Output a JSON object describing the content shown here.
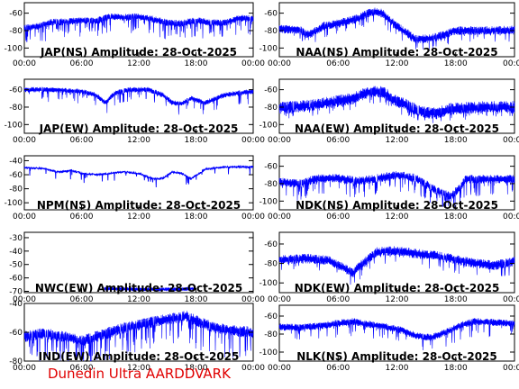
{
  "footer_text": "Dunedin Ultra AARDDVARK",
  "series_color": "#0000ff",
  "footer_color": "#e00000",
  "chart_data": [
    {
      "type": "line",
      "title": "JAP(NS) Amplitude: 28-Oct-2025",
      "x_ticks": [
        "00:00",
        "06:00",
        "12:00",
        "18:00",
        "00:00"
      ],
      "y_ticks": [
        "-60",
        "-80",
        "-100"
      ],
      "ylim": [
        -110,
        -48
      ],
      "baseline": [
        [
          0,
          -77
        ],
        [
          1.5,
          -75
        ],
        [
          3,
          -70
        ],
        [
          4.5,
          -70
        ],
        [
          6,
          -68
        ],
        [
          7.5,
          -69
        ],
        [
          9,
          -64
        ],
        [
          10.5,
          -65
        ],
        [
          12,
          -64
        ],
        [
          13.5,
          -67
        ],
        [
          15,
          -71
        ],
        [
          16.5,
          -72
        ],
        [
          18,
          -68
        ],
        [
          19.5,
          -71
        ],
        [
          21,
          -71
        ],
        [
          22.5,
          -66
        ],
        [
          24,
          -66
        ]
      ],
      "noise": 4,
      "spike_rate": 0.12,
      "spike_depth": 14,
      "mode": "dense"
    },
    {
      "type": "line",
      "title": "NAA(NS) Amplitude: 28-Oct-2025",
      "x_ticks": [
        "00:00",
        "06:00",
        "12:00",
        "18:00",
        "00:00"
      ],
      "y_ticks": [
        "-60",
        "-80",
        "-100"
      ],
      "ylim": [
        -110,
        -48
      ],
      "baseline": [
        [
          0,
          -78
        ],
        [
          2,
          -79
        ],
        [
          3,
          -85
        ],
        [
          4.5,
          -75
        ],
        [
          6,
          -72
        ],
        [
          8,
          -66
        ],
        [
          9.5,
          -58
        ],
        [
          10.5,
          -60
        ],
        [
          11.5,
          -70
        ],
        [
          12.5,
          -79
        ],
        [
          14,
          -90
        ],
        [
          15.5,
          -89
        ],
        [
          17,
          -84
        ],
        [
          18,
          -80
        ],
        [
          20,
          -80
        ],
        [
          22,
          -80
        ],
        [
          24,
          -79
        ]
      ],
      "noise": 5,
      "spike_rate": 0.05,
      "spike_depth": 10,
      "mode": "dense"
    },
    {
      "type": "line",
      "title": "JAP(EW) Amplitude: 28-Oct-2025",
      "x_ticks": [
        "00:00",
        "06:00",
        "12:00",
        "18:00",
        "00:00"
      ],
      "y_ticks": [
        "-60",
        "-80",
        "-100"
      ],
      "ylim": [
        -110,
        -48
      ],
      "baseline": [
        [
          0,
          -60
        ],
        [
          3,
          -60
        ],
        [
          6,
          -62
        ],
        [
          7.5,
          -66
        ],
        [
          8.5,
          -75
        ],
        [
          9.5,
          -64
        ],
        [
          11,
          -60
        ],
        [
          13,
          -60
        ],
        [
          14.5,
          -66
        ],
        [
          15.5,
          -75
        ],
        [
          16.5,
          -76
        ],
        [
          17.5,
          -70
        ],
        [
          19,
          -75
        ],
        [
          21,
          -66
        ],
        [
          24,
          -62
        ]
      ],
      "noise": 3,
      "spike_rate": 0.06,
      "spike_depth": 10,
      "mode": "dense"
    },
    {
      "type": "line",
      "title": "NAA(EW) Amplitude: 28-Oct-2025",
      "x_ticks": [
        "00:00",
        "06:00",
        "12:00",
        "18:00",
        "00:00"
      ],
      "y_ticks": [
        "-60",
        "-80",
        "-100"
      ],
      "ylim": [
        -110,
        -48
      ],
      "baseline": [
        [
          0,
          -81
        ],
        [
          2,
          -79
        ],
        [
          4,
          -77
        ],
        [
          6,
          -73
        ],
        [
          7.5,
          -70
        ],
        [
          9,
          -63
        ],
        [
          10.5,
          -62
        ],
        [
          11.5,
          -70
        ],
        [
          13,
          -78
        ],
        [
          14.5,
          -86
        ],
        [
          16,
          -87
        ],
        [
          17.5,
          -82
        ],
        [
          19,
          -81
        ],
        [
          21,
          -80
        ],
        [
          24,
          -80
        ]
      ],
      "noise": 7,
      "spike_rate": 0.08,
      "spike_depth": 10,
      "mode": "dense"
    },
    {
      "type": "line",
      "title": "NPM(NS) Amplitude: 28-Oct-2025",
      "x_ticks": [
        "00:00",
        "06:00",
        "12:00",
        "18:00",
        "00:00"
      ],
      "y_ticks": [
        "-40",
        "-60",
        "-80",
        "-100"
      ],
      "ylim": [
        -110,
        -33
      ],
      "baseline": [
        [
          0,
          -50
        ],
        [
          2,
          -51
        ],
        [
          3.5,
          -56
        ],
        [
          5,
          -54
        ],
        [
          6,
          -58
        ],
        [
          7.5,
          -60
        ],
        [
          9,
          -58
        ],
        [
          10.5,
          -56
        ],
        [
          12,
          -58
        ],
        [
          13.5,
          -66
        ],
        [
          14.5,
          -65
        ],
        [
          15.5,
          -56
        ],
        [
          16.5,
          -58
        ],
        [
          17.5,
          -66
        ],
        [
          19,
          -52
        ],
        [
          21,
          -49
        ],
        [
          24,
          -49
        ]
      ],
      "noise": 1.2,
      "spike_rate": 0.025,
      "spike_depth": 10,
      "mode": "thin"
    },
    {
      "type": "line",
      "title": "NDK(NS) Amplitude: 28-Oct-2025",
      "x_ticks": [
        "00:00",
        "06:00",
        "12:00",
        "18:00",
        "00:00"
      ],
      "y_ticks": [
        "-60",
        "-80",
        "-100"
      ],
      "ylim": [
        -110,
        -48
      ],
      "baseline": [
        [
          0,
          -78
        ],
        [
          2,
          -80
        ],
        [
          4,
          -74
        ],
        [
          6,
          -74
        ],
        [
          8,
          -77
        ],
        [
          10,
          -74
        ],
        [
          12,
          -70
        ],
        [
          14,
          -74
        ],
        [
          16,
          -88
        ],
        [
          17.5,
          -94
        ],
        [
          18.5,
          -84
        ],
        [
          19,
          -75
        ],
        [
          21,
          -75
        ],
        [
          24,
          -75
        ]
      ],
      "noise": 5,
      "spike_rate": 0.1,
      "spike_depth": 14,
      "mode": "dense"
    },
    {
      "type": "line",
      "title": "NWC(EW) Amplitude: 28-Oct-2025",
      "x_ticks": [
        "00:00",
        "06:00",
        "12:00",
        "18:00",
        "00:00"
      ],
      "y_ticks": [
        "-30",
        "-40",
        "-50",
        "-60",
        "-70"
      ],
      "ylim": [
        -71,
        -26
      ],
      "baseline": [
        [
          8.4,
          -68
        ],
        [
          12,
          -68.5
        ],
        [
          16,
          -68.5
        ],
        [
          17.8,
          -68
        ]
      ],
      "x_start": 8.4,
      "x_end": 17.8,
      "noise": 1.5,
      "spike_rate": 0.0,
      "spike_depth": 0,
      "mode": "dense"
    },
    {
      "type": "line",
      "title": "NDK(EW) Amplitude: 28-Oct-2025",
      "x_ticks": [
        "00:00",
        "06:00",
        "12:00",
        "18:00",
        "00:00"
      ],
      "y_ticks": [
        "-60",
        "-80",
        "-100"
      ],
      "ylim": [
        -110,
        -48
      ],
      "baseline": [
        [
          0,
          -76
        ],
        [
          3,
          -75
        ],
        [
          5,
          -77
        ],
        [
          6.5,
          -84
        ],
        [
          7.5,
          -90
        ],
        [
          8.5,
          -80
        ],
        [
          10,
          -68
        ],
        [
          12,
          -67
        ],
        [
          14,
          -70
        ],
        [
          16,
          -72
        ],
        [
          18,
          -76
        ],
        [
          20,
          -80
        ],
        [
          22,
          -82
        ],
        [
          24,
          -78
        ]
      ],
      "noise": 5,
      "spike_rate": 0.04,
      "spike_depth": 10,
      "mode": "dense"
    },
    {
      "type": "line",
      "title": "IND(EW) Amplitude: 28-Oct-2025",
      "x_ticks": [
        "00:00",
        "06:00",
        "12:00",
        "18:00",
        "00:00"
      ],
      "y_ticks": [
        "-40",
        "-60",
        "-80"
      ],
      "ylim": [
        -80,
        -40
      ],
      "baseline": [
        [
          0,
          -63
        ],
        [
          2,
          -61
        ],
        [
          4,
          -63
        ],
        [
          5,
          -64
        ],
        [
          6,
          -66
        ],
        [
          7.5,
          -63
        ],
        [
          9,
          -60
        ],
        [
          10.5,
          -57
        ],
        [
          12,
          -55
        ],
        [
          14,
          -52
        ],
        [
          16,
          -50
        ],
        [
          17,
          -49
        ],
        [
          18,
          -52
        ],
        [
          20,
          -57
        ],
        [
          22,
          -59
        ],
        [
          24,
          -60
        ]
      ],
      "noise": 4,
      "spike_rate": 0.11,
      "spike_depth": 14,
      "mode": "dense"
    },
    {
      "type": "line",
      "title": "NLK(NS) Amplitude: 28-Oct-2025",
      "x_ticks": [
        "00:00",
        "06:00",
        "12:00",
        "18:00",
        "00:00"
      ],
      "y_ticks": [
        "-60",
        "-80",
        "-100"
      ],
      "ylim": [
        -110,
        -48
      ],
      "baseline": [
        [
          0,
          -72
        ],
        [
          2,
          -73
        ],
        [
          4,
          -71
        ],
        [
          6,
          -68
        ],
        [
          7.5,
          -66
        ],
        [
          9,
          -69
        ],
        [
          11,
          -72
        ],
        [
          12.5,
          -76
        ],
        [
          14,
          -82
        ],
        [
          15.5,
          -84
        ],
        [
          17,
          -78
        ],
        [
          18.5,
          -70
        ],
        [
          20,
          -66
        ],
        [
          22,
          -67
        ],
        [
          24,
          -68
        ]
      ],
      "noise": 4,
      "spike_rate": 0.06,
      "spike_depth": 12,
      "mode": "dense"
    }
  ]
}
